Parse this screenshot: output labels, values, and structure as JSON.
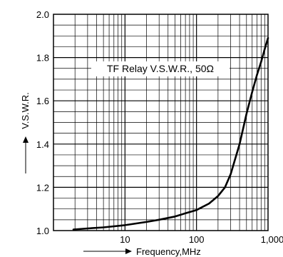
{
  "chart_data": {
    "type": "line",
    "title": "TF Relay V.S.W.R., 50Ω",
    "xlabel": "Frequency,MHz",
    "ylabel": "V.S.W.R.",
    "x_scale": "log",
    "xlim": [
      1,
      1000
    ],
    "ylim": [
      1.0,
      2.0
    ],
    "x_ticks": [
      {
        "value": 10,
        "label": "10"
      },
      {
        "value": 100,
        "label": "100"
      },
      {
        "value": 1000,
        "label": "1,000"
      }
    ],
    "y_ticks": [
      {
        "value": 1.0,
        "label": "1.0"
      },
      {
        "value": 1.2,
        "label": "1.2"
      },
      {
        "value": 1.4,
        "label": "1.4"
      },
      {
        "value": 1.6,
        "label": "1.6"
      },
      {
        "value": 1.8,
        "label": "1.8"
      },
      {
        "value": 2.0,
        "label": "2.0"
      }
    ],
    "grid": true,
    "series": [
      {
        "color": "#000000",
        "points": [
          [
            1.9,
            1.005
          ],
          [
            3,
            1.01
          ],
          [
            5,
            1.015
          ],
          [
            10,
            1.025
          ],
          [
            20,
            1.04
          ],
          [
            30,
            1.05
          ],
          [
            50,
            1.065
          ],
          [
            70,
            1.08
          ],
          [
            100,
            1.095
          ],
          [
            150,
            1.125
          ],
          [
            200,
            1.16
          ],
          [
            250,
            1.2
          ],
          [
            300,
            1.26
          ],
          [
            400,
            1.4
          ],
          [
            500,
            1.54
          ],
          [
            600,
            1.64
          ],
          [
            700,
            1.72
          ],
          [
            800,
            1.78
          ],
          [
            900,
            1.84
          ],
          [
            1000,
            1.89
          ]
        ]
      }
    ]
  }
}
